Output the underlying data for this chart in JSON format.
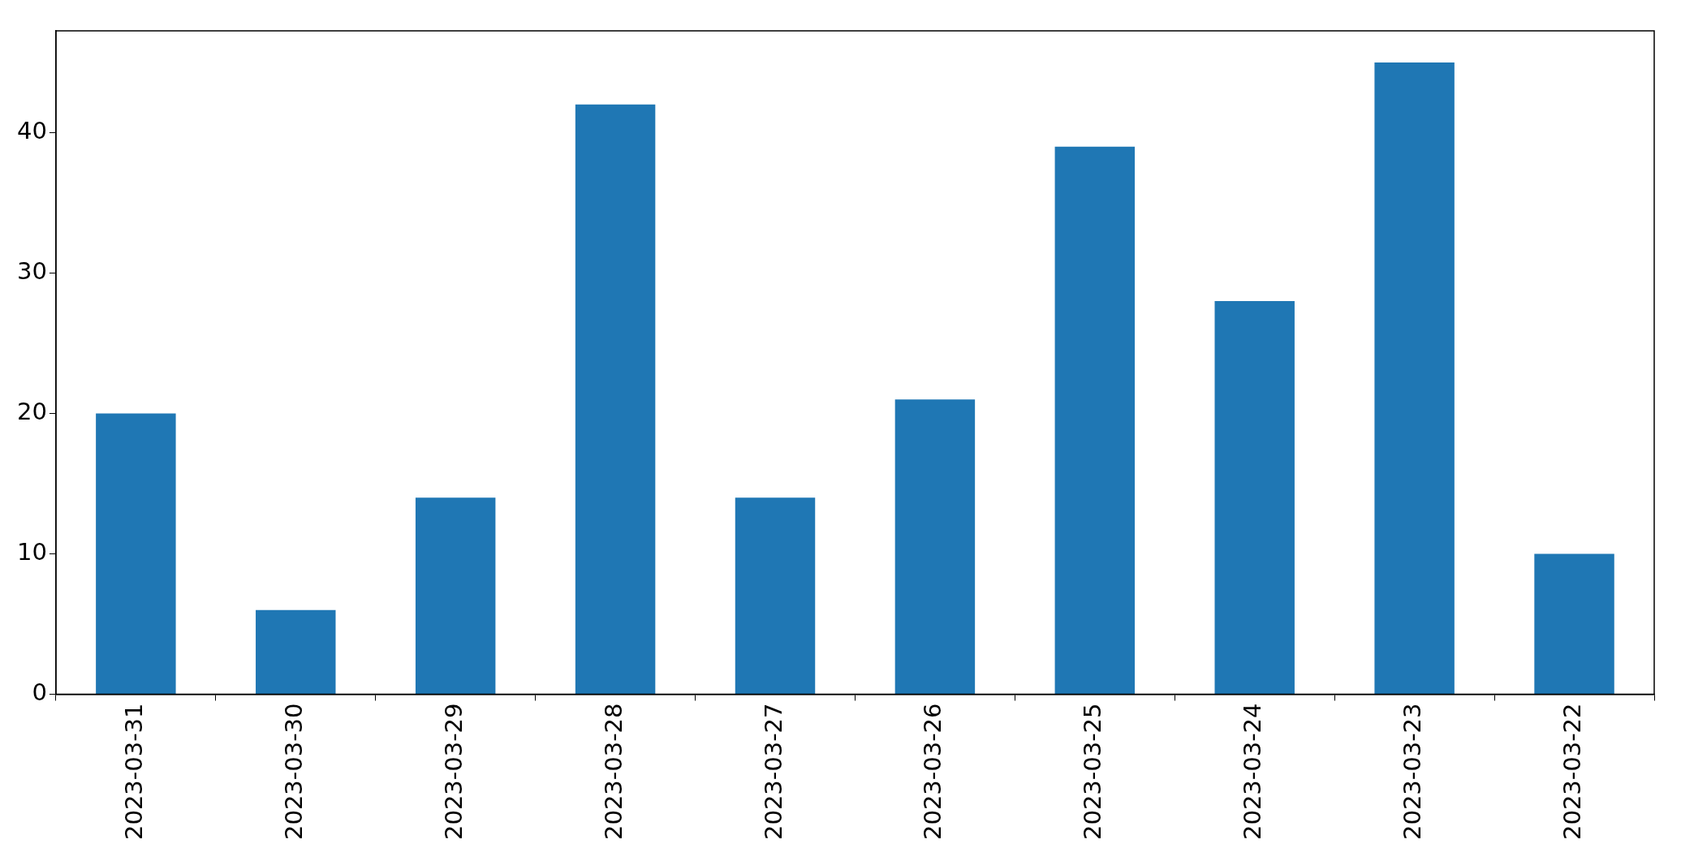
{
  "chart_data": {
    "type": "bar",
    "categories": [
      "2023-03-31",
      "2023-03-30",
      "2023-03-29",
      "2023-03-28",
      "2023-03-27",
      "2023-03-26",
      "2023-03-25",
      "2023-03-24",
      "2023-03-23",
      "2023-03-22"
    ],
    "values": [
      20,
      6,
      14,
      42,
      14,
      21,
      39,
      28,
      45,
      10
    ],
    "color": "#1f77b4",
    "ylim": [
      0,
      47.25
    ],
    "yticks": [
      0,
      10,
      20,
      30,
      40
    ]
  }
}
